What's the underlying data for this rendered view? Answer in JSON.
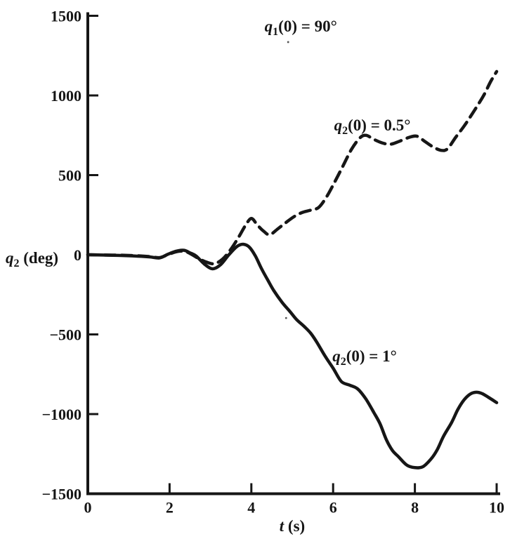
{
  "style": {
    "ink": "#161616",
    "background": "#ffffff"
  },
  "chart_data": {
    "type": "line",
    "title": "q1(0) = 90°",
    "xlabel": "t (s)",
    "ylabel": "q2 (deg)",
    "xlim": [
      0,
      10
    ],
    "ylim": [
      -1500,
      1500
    ],
    "grid": false,
    "legend": "inline curve labels",
    "x_ticks": [
      {
        "v": 0,
        "label": "0"
      },
      {
        "v": 2,
        "label": "2"
      },
      {
        "v": 4,
        "label": "4"
      },
      {
        "v": 6,
        "label": "6"
      },
      {
        "v": 8,
        "label": "8"
      },
      {
        "v": 10,
        "label": "10"
      }
    ],
    "y_ticks": [
      {
        "v": 1500,
        "label": "1500"
      },
      {
        "v": 1000,
        "label": "1000"
      },
      {
        "v": 500,
        "label": "500"
      },
      {
        "v": 0,
        "label": "0"
      },
      {
        "v": -500,
        "label": "−500"
      },
      {
        "v": -1000,
        "label": "−1000"
      },
      {
        "v": -1500,
        "label": "−1500"
      }
    ],
    "x_axis_label": {
      "variable": "t",
      "subscript": "",
      "rest": " (s)"
    },
    "y_axis_label": {
      "variable": "q",
      "subscript": "2",
      "rest": " (deg)"
    },
    "annotation": {
      "name": "q1(0) = 90°",
      "variable": "q",
      "subscript": "1",
      "rest": "(0) = 90°",
      "anchor": [
        5.21,
        1400
      ]
    },
    "series": [
      {
        "name": "q2(0) = 0.5°",
        "line_style": "dashed",
        "label": {
          "variable": "q",
          "subscript": "2",
          "rest": "(0) = 0.5°"
        },
        "label_anchor": [
          6.96,
          780
        ],
        "points": [
          [
            0,
            0
          ],
          [
            0.6,
            -2
          ],
          [
            1.1,
            -5
          ],
          [
            1.5,
            -11
          ],
          [
            1.75,
            -18
          ],
          [
            1.95,
            0
          ],
          [
            2.15,
            18
          ],
          [
            2.35,
            23
          ],
          [
            2.5,
            8
          ],
          [
            2.7,
            -22
          ],
          [
            2.9,
            -46
          ],
          [
            3.1,
            -56
          ],
          [
            3.3,
            -26
          ],
          [
            3.5,
            35
          ],
          [
            3.7,
            115
          ],
          [
            3.85,
            182
          ],
          [
            4.0,
            228
          ],
          [
            4.15,
            186
          ],
          [
            4.3,
            148
          ],
          [
            4.45,
            126
          ],
          [
            4.65,
            163
          ],
          [
            4.85,
            203
          ],
          [
            5.05,
            240
          ],
          [
            5.25,
            266
          ],
          [
            5.45,
            280
          ],
          [
            5.65,
            298
          ],
          [
            5.85,
            368
          ],
          [
            6.05,
            462
          ],
          [
            6.25,
            562
          ],
          [
            6.45,
            662
          ],
          [
            6.65,
            732
          ],
          [
            6.8,
            750
          ],
          [
            7.0,
            724
          ],
          [
            7.2,
            702
          ],
          [
            7.4,
            694
          ],
          [
            7.6,
            710
          ],
          [
            7.85,
            736
          ],
          [
            8.05,
            744
          ],
          [
            8.25,
            710
          ],
          [
            8.45,
            676
          ],
          [
            8.65,
            655
          ],
          [
            8.8,
            666
          ],
          [
            9.0,
            738
          ],
          [
            9.2,
            806
          ],
          [
            9.35,
            864
          ],
          [
            9.55,
            944
          ],
          [
            9.7,
            1008
          ],
          [
            9.85,
            1086
          ],
          [
            10,
            1150
          ]
        ]
      },
      {
        "name": "q2(0) = 1°",
        "line_style": "solid",
        "label": {
          "variable": "q",
          "subscript": "2",
          "rest": "(0) = 1°"
        },
        "label_anchor": [
          6.77,
          -670
        ],
        "points": [
          [
            0,
            0
          ],
          [
            0.6,
            -3
          ],
          [
            1.1,
            -7
          ],
          [
            1.5,
            -13
          ],
          [
            1.75,
            -20
          ],
          [
            1.95,
            2
          ],
          [
            2.15,
            22
          ],
          [
            2.35,
            28
          ],
          [
            2.5,
            12
          ],
          [
            2.65,
            -8
          ],
          [
            2.85,
            -58
          ],
          [
            3.05,
            -88
          ],
          [
            3.25,
            -62
          ],
          [
            3.45,
            0
          ],
          [
            3.65,
            52
          ],
          [
            3.8,
            66
          ],
          [
            3.95,
            48
          ],
          [
            4.1,
            -8
          ],
          [
            4.25,
            -88
          ],
          [
            4.4,
            -158
          ],
          [
            4.55,
            -225
          ],
          [
            4.75,
            -298
          ],
          [
            4.95,
            -358
          ],
          [
            5.1,
            -405
          ],
          [
            5.3,
            -452
          ],
          [
            5.45,
            -492
          ],
          [
            5.6,
            -548
          ],
          [
            5.8,
            -635
          ],
          [
            6.0,
            -712
          ],
          [
            6.2,
            -795
          ],
          [
            6.4,
            -818
          ],
          [
            6.6,
            -842
          ],
          [
            6.8,
            -905
          ],
          [
            7.0,
            -992
          ],
          [
            7.15,
            -1062
          ],
          [
            7.3,
            -1160
          ],
          [
            7.45,
            -1228
          ],
          [
            7.6,
            -1268
          ],
          [
            7.8,
            -1320
          ],
          [
            8.0,
            -1336
          ],
          [
            8.2,
            -1330
          ],
          [
            8.4,
            -1280
          ],
          [
            8.55,
            -1222
          ],
          [
            8.7,
            -1140
          ],
          [
            8.9,
            -1052
          ],
          [
            9.05,
            -972
          ],
          [
            9.2,
            -912
          ],
          [
            9.35,
            -875
          ],
          [
            9.5,
            -863
          ],
          [
            9.65,
            -872
          ],
          [
            9.8,
            -895
          ],
          [
            10,
            -928
          ]
        ]
      }
    ],
    "print_specks": [
      [
        4.9,
        1335
      ],
      [
        4.85,
        -397
      ]
    ]
  }
}
